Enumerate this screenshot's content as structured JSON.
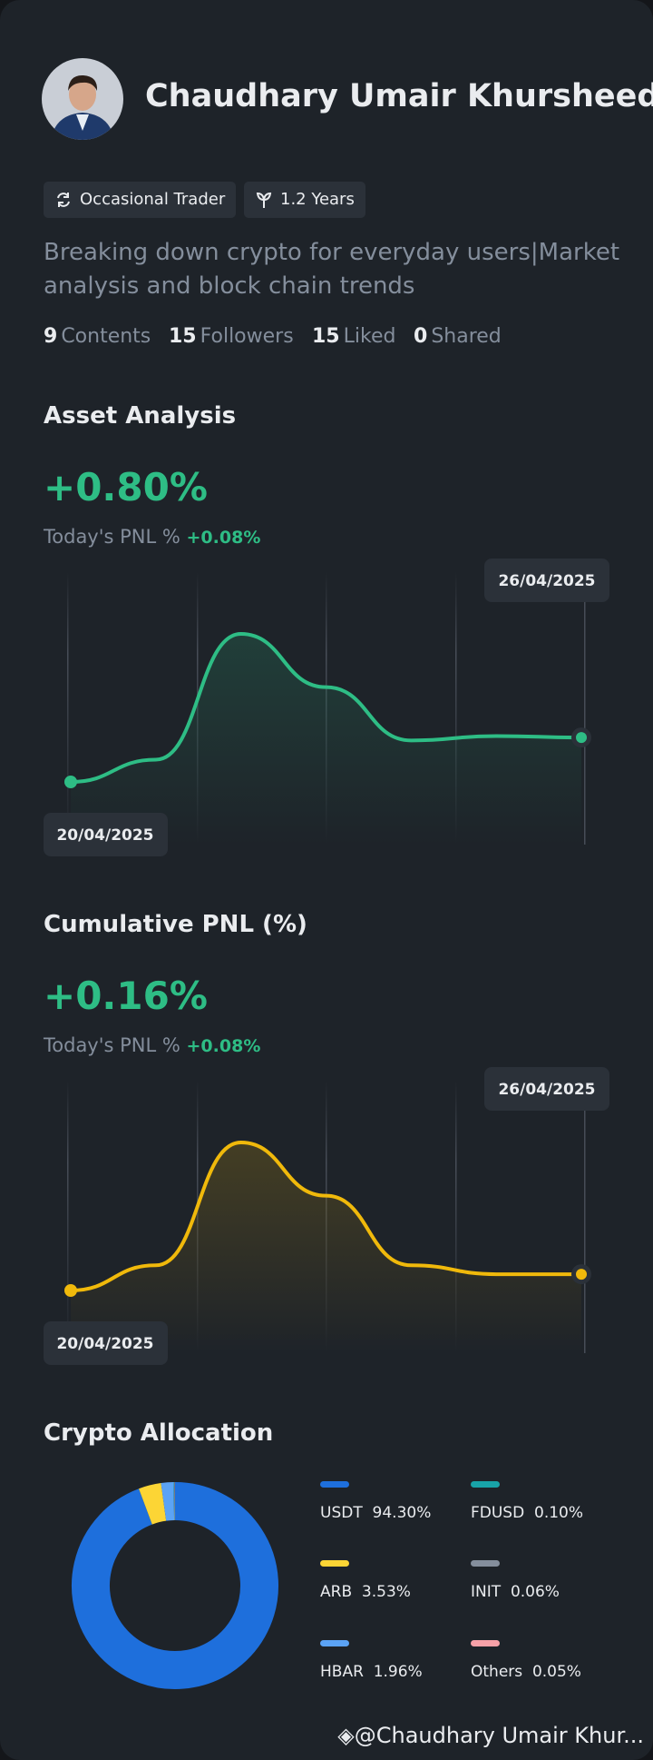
{
  "profile": {
    "name": "Chaudhary Umair Khursheed",
    "tags": [
      "Occasional Trader",
      "1.2 Years"
    ],
    "bio": "Breaking down crypto for everyday users|Market analysis and block chain trends",
    "stats": [
      {
        "value": 9,
        "label": "Contents"
      },
      {
        "value": 15,
        "label": "Followers"
      },
      {
        "value": 15,
        "label": "Liked"
      },
      {
        "value": 0,
        "label": "Shared"
      }
    ]
  },
  "asset_analysis": {
    "title": "Asset Analysis",
    "value": "+0.80%",
    "today_label": "Today's PNL %",
    "today_value": "+0.08%",
    "start_date": "20/04/2025",
    "end_date": "26/04/2025",
    "color": "#2ebd85",
    "values": [
      0.0,
      0.15,
      1.0,
      0.64,
      0.28,
      0.31,
      0.3
    ]
  },
  "cumulative_pnl": {
    "title": "Cumulative PNL (%)",
    "value": "+0.16%",
    "today_label": "Today's PNL %",
    "today_value": "+0.08%",
    "start_date": "20/04/2025",
    "end_date": "26/04/2025",
    "color": "#f0b90b",
    "values": [
      0.0,
      0.17,
      1.0,
      0.64,
      0.17,
      0.11,
      0.11
    ]
  },
  "allocation": {
    "title": "Crypto Allocation",
    "names": [
      "USDT",
      "ARB",
      "HBAR",
      "FDUSD",
      "INIT",
      "Others"
    ],
    "values": [
      94.3,
      3.53,
      1.96,
      0.1,
      0.06,
      0.05
    ],
    "value_labels": [
      "94.30%",
      "3.53%",
      "1.96%",
      "0.10%",
      "0.06%",
      "0.05%"
    ],
    "colors": [
      "#1e6fdc",
      "#fcd535",
      "#5ba3f5",
      "#18a3a8",
      "#848e9c",
      "#f7a1a8"
    ]
  },
  "watermark": "@Chaudhary Umair Khur..."
}
